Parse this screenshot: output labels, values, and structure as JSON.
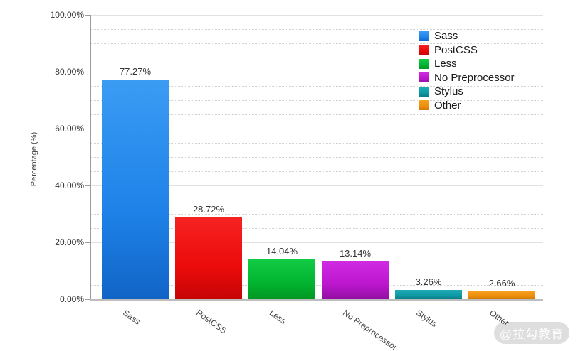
{
  "chart_data": {
    "type": "bar",
    "title": "",
    "xlabel": "",
    "ylabel": "Percentage (%)",
    "ylim": [
      0,
      100
    ],
    "y_major_ticks": [
      0,
      20,
      40,
      60,
      80,
      100
    ],
    "y_tick_labels": [
      "0.00%",
      "20.00%",
      "40.00%",
      "60.00%",
      "80.00%",
      "100.00%"
    ],
    "y_minor_step": 5,
    "grid": "major-solid-minor-dotted",
    "legend_position": "top-right",
    "categories": [
      "Sass",
      "PostCSS",
      "Less",
      "No Preprocessor",
      "Stylus",
      "Other"
    ],
    "values": [
      77.27,
      28.72,
      14.04,
      13.14,
      3.26,
      2.66
    ],
    "value_labels": [
      "77.27%",
      "28.72%",
      "14.04%",
      "13.14%",
      "3.26%",
      "2.66%"
    ],
    "series_colors": [
      {
        "name": "Sass",
        "top": "#3b9cf4",
        "mid": "#1e82e8",
        "bottom": "#1264c6"
      },
      {
        "name": "PostCSS",
        "top": "#f62222",
        "mid": "#ec0b0b",
        "bottom": "#c60505"
      },
      {
        "name": "Less",
        "top": "#12cb45",
        "mid": "#02b42f",
        "bottom": "#019723"
      },
      {
        "name": "No Preprocessor",
        "top": "#d02be2",
        "mid": "#bc17ce",
        "bottom": "#920fa2"
      },
      {
        "name": "Stylus",
        "top": "#1fabb6",
        "mid": "#0e99a4",
        "bottom": "#0a7e87"
      },
      {
        "name": "Other",
        "top": "#f7a11f",
        "mid": "#ee8e0c",
        "bottom": "#cf7a06"
      }
    ]
  },
  "legend": {
    "items": [
      "Sass",
      "PostCSS",
      "Less",
      "No Preprocessor",
      "Stylus",
      "Other"
    ]
  },
  "watermark": {
    "text": "@拉勾教育"
  }
}
